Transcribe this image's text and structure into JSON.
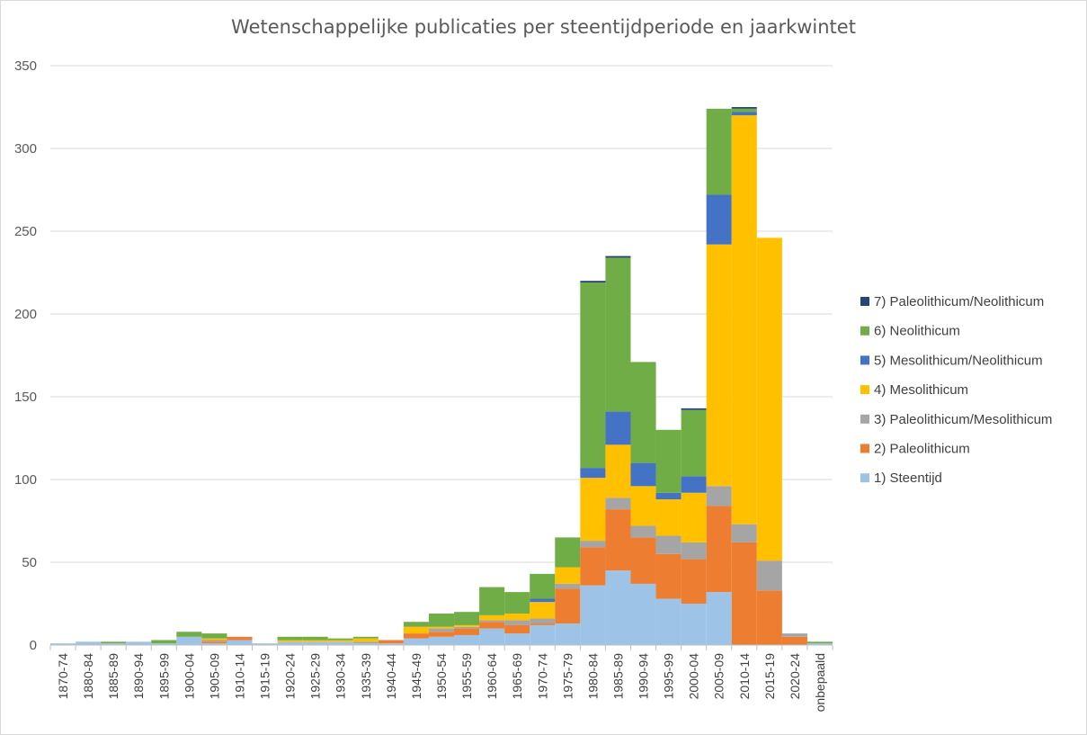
{
  "chart_data": {
    "type": "bar",
    "stacked": true,
    "title": "Wetenschappelijke publicaties per steentijdperiode en jaarkwintet",
    "xlabel": "",
    "ylabel": "",
    "ylim": [
      0,
      350
    ],
    "yticks": [
      0,
      50,
      100,
      150,
      200,
      250,
      300,
      350
    ],
    "grid": true,
    "legend_position": "right",
    "categories": [
      "1870-74",
      "1880-84",
      "1885-89",
      "1890-94",
      "1895-99",
      "1900-04",
      "1905-09",
      "1910-14",
      "1915-19",
      "1920-24",
      "1925-29",
      "1930-34",
      "1935-39",
      "1940-44",
      "1945-49",
      "1950-54",
      "1955-59",
      "1960-64",
      "1965-69",
      "1970-74",
      "1975-79",
      "1980-84",
      "1985-89",
      "1990-94",
      "1995-99",
      "2000-04",
      "2005-09",
      "2010-14",
      "2015-19",
      "2020-24",
      "onbepaald"
    ],
    "series": [
      {
        "name": "1) Steentijd",
        "color": "#9DC3E6",
        "values": [
          1,
          2,
          1,
          2,
          1,
          5,
          1,
          3,
          1,
          2,
          2,
          2,
          1,
          1,
          4,
          5,
          6,
          10,
          7,
          12,
          13,
          36,
          45,
          37,
          28,
          25,
          32,
          0,
          0,
          0,
          1
        ]
      },
      {
        "name": "2) Paleolithicum",
        "color": "#ED7D31",
        "values": [
          0,
          0,
          0,
          0,
          0,
          0,
          1,
          2,
          0,
          0,
          0,
          0,
          0,
          2,
          3,
          3,
          4,
          4,
          5,
          1,
          21,
          23,
          37,
          28,
          27,
          27,
          52,
          62,
          33,
          5,
          0
        ]
      },
      {
        "name": "3) Paleolithicum/Mesolithicum",
        "color": "#A5A5A5",
        "values": [
          0,
          0,
          0,
          0,
          0,
          0,
          1,
          0,
          0,
          0,
          0,
          0,
          1,
          0,
          0,
          2,
          1,
          1,
          3,
          3,
          3,
          4,
          7,
          7,
          11,
          10,
          12,
          11,
          18,
          2,
          0
        ]
      },
      {
        "name": "4) Mesolithicum",
        "color": "#FFC000",
        "values": [
          0,
          0,
          0,
          0,
          0,
          0,
          1,
          0,
          0,
          1,
          1,
          1,
          2,
          0,
          4,
          1,
          1,
          3,
          4,
          10,
          10,
          38,
          32,
          24,
          22,
          30,
          146,
          247,
          195,
          0,
          0
        ]
      },
      {
        "name": "5) Mesolithicum/Neolithicum",
        "color": "#4472C4",
        "values": [
          0,
          0,
          0,
          0,
          0,
          0,
          0,
          0,
          0,
          0,
          0,
          0,
          0,
          0,
          0,
          0,
          0,
          0,
          0,
          2,
          0,
          6,
          20,
          14,
          4,
          10,
          30,
          2,
          0,
          0,
          0
        ]
      },
      {
        "name": "6) Neolithicum",
        "color": "#70AD47",
        "values": [
          0,
          0,
          1,
          0,
          2,
          3,
          3,
          0,
          0,
          2,
          2,
          1,
          1,
          0,
          3,
          8,
          8,
          17,
          13,
          15,
          18,
          112,
          93,
          61,
          38,
          40,
          52,
          2,
          0,
          0,
          1
        ]
      },
      {
        "name": "7) Paleolithicum/Neolithicum",
        "color": "#264478",
        "values": [
          0,
          0,
          0,
          0,
          0,
          0,
          0,
          0,
          0,
          0,
          0,
          0,
          0,
          0,
          0,
          0,
          0,
          0,
          0,
          0,
          0,
          1,
          1,
          0,
          0,
          1,
          0,
          1,
          0,
          0,
          0
        ]
      }
    ]
  }
}
